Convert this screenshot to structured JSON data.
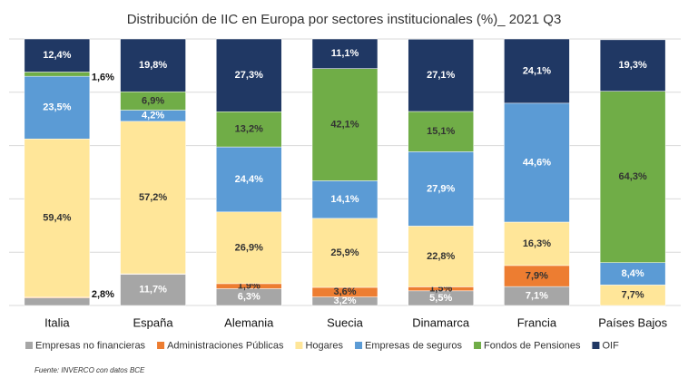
{
  "chart_data": {
    "type": "stacked_bar",
    "title": "Distribución de IIC en Europa por sectores institucionales (%)_ 2021 Q3",
    "categories": [
      "Italia",
      "España",
      "Alemania",
      "Suecia",
      "Dinamarca",
      "Francia",
      "Países Bajos"
    ],
    "series": [
      {
        "name": "Empresas no financieras",
        "color": "#a6a6a6",
        "values": [
          2.8,
          11.7,
          6.3,
          3.2,
          5.5,
          7.1,
          0
        ],
        "value_labels": [
          "2,8%",
          "11,7%",
          "6,3%",
          "3,2%",
          "5,5%",
          "7,1%",
          null
        ]
      },
      {
        "name": "Administraciones Públicas",
        "color": "#ed7d31",
        "values": [
          0.3,
          0.2,
          1.9,
          3.6,
          1.5,
          7.9,
          0
        ],
        "value_labels": [
          null,
          null,
          "1,9%",
          "3,6%",
          "1,5%",
          "7,9%",
          null
        ]
      },
      {
        "name": "Hogares",
        "color": "#ffe699",
        "values": [
          59.4,
          57.2,
          26.9,
          25.9,
          22.8,
          16.3,
          7.7
        ],
        "value_labels": [
          "59,4%",
          "57,2%",
          "26,9%",
          "25,9%",
          "22,8%",
          "16,3%",
          "7,7%"
        ]
      },
      {
        "name": "Empresas de seguros",
        "color": "#5b9bd5",
        "values": [
          23.5,
          4.2,
          24.4,
          14.1,
          27.9,
          44.6,
          8.4
        ],
        "value_labels": [
          "23,5%",
          "4,2%",
          "24,4%",
          "14,1%",
          "27,9%",
          "44,6%",
          "8,4%"
        ]
      },
      {
        "name": "Fondos de Pensiones",
        "color": "#70ad47",
        "values": [
          1.6,
          6.9,
          13.2,
          42.1,
          15.1,
          0,
          64.3
        ],
        "value_labels": [
          "1,6%",
          "6,9%",
          "13,2%",
          "42,1%",
          "15,1%",
          null,
          "64,3%"
        ]
      },
      {
        "name": "OIF",
        "color": "#203864",
        "values": [
          12.4,
          19.8,
          27.3,
          11.1,
          27.1,
          24.1,
          19.3
        ],
        "value_labels": [
          "12,4%",
          "19,8%",
          "27,3%",
          "11,1%",
          "27,1%",
          "24,1%",
          "19,3%"
        ]
      }
    ],
    "ylim": [
      0,
      100
    ],
    "yticks": [
      0,
      20,
      40,
      60,
      80,
      100
    ],
    "grid": true,
    "legend": "bottom",
    "source": "Fuente: INVERCO con datos BCE"
  }
}
